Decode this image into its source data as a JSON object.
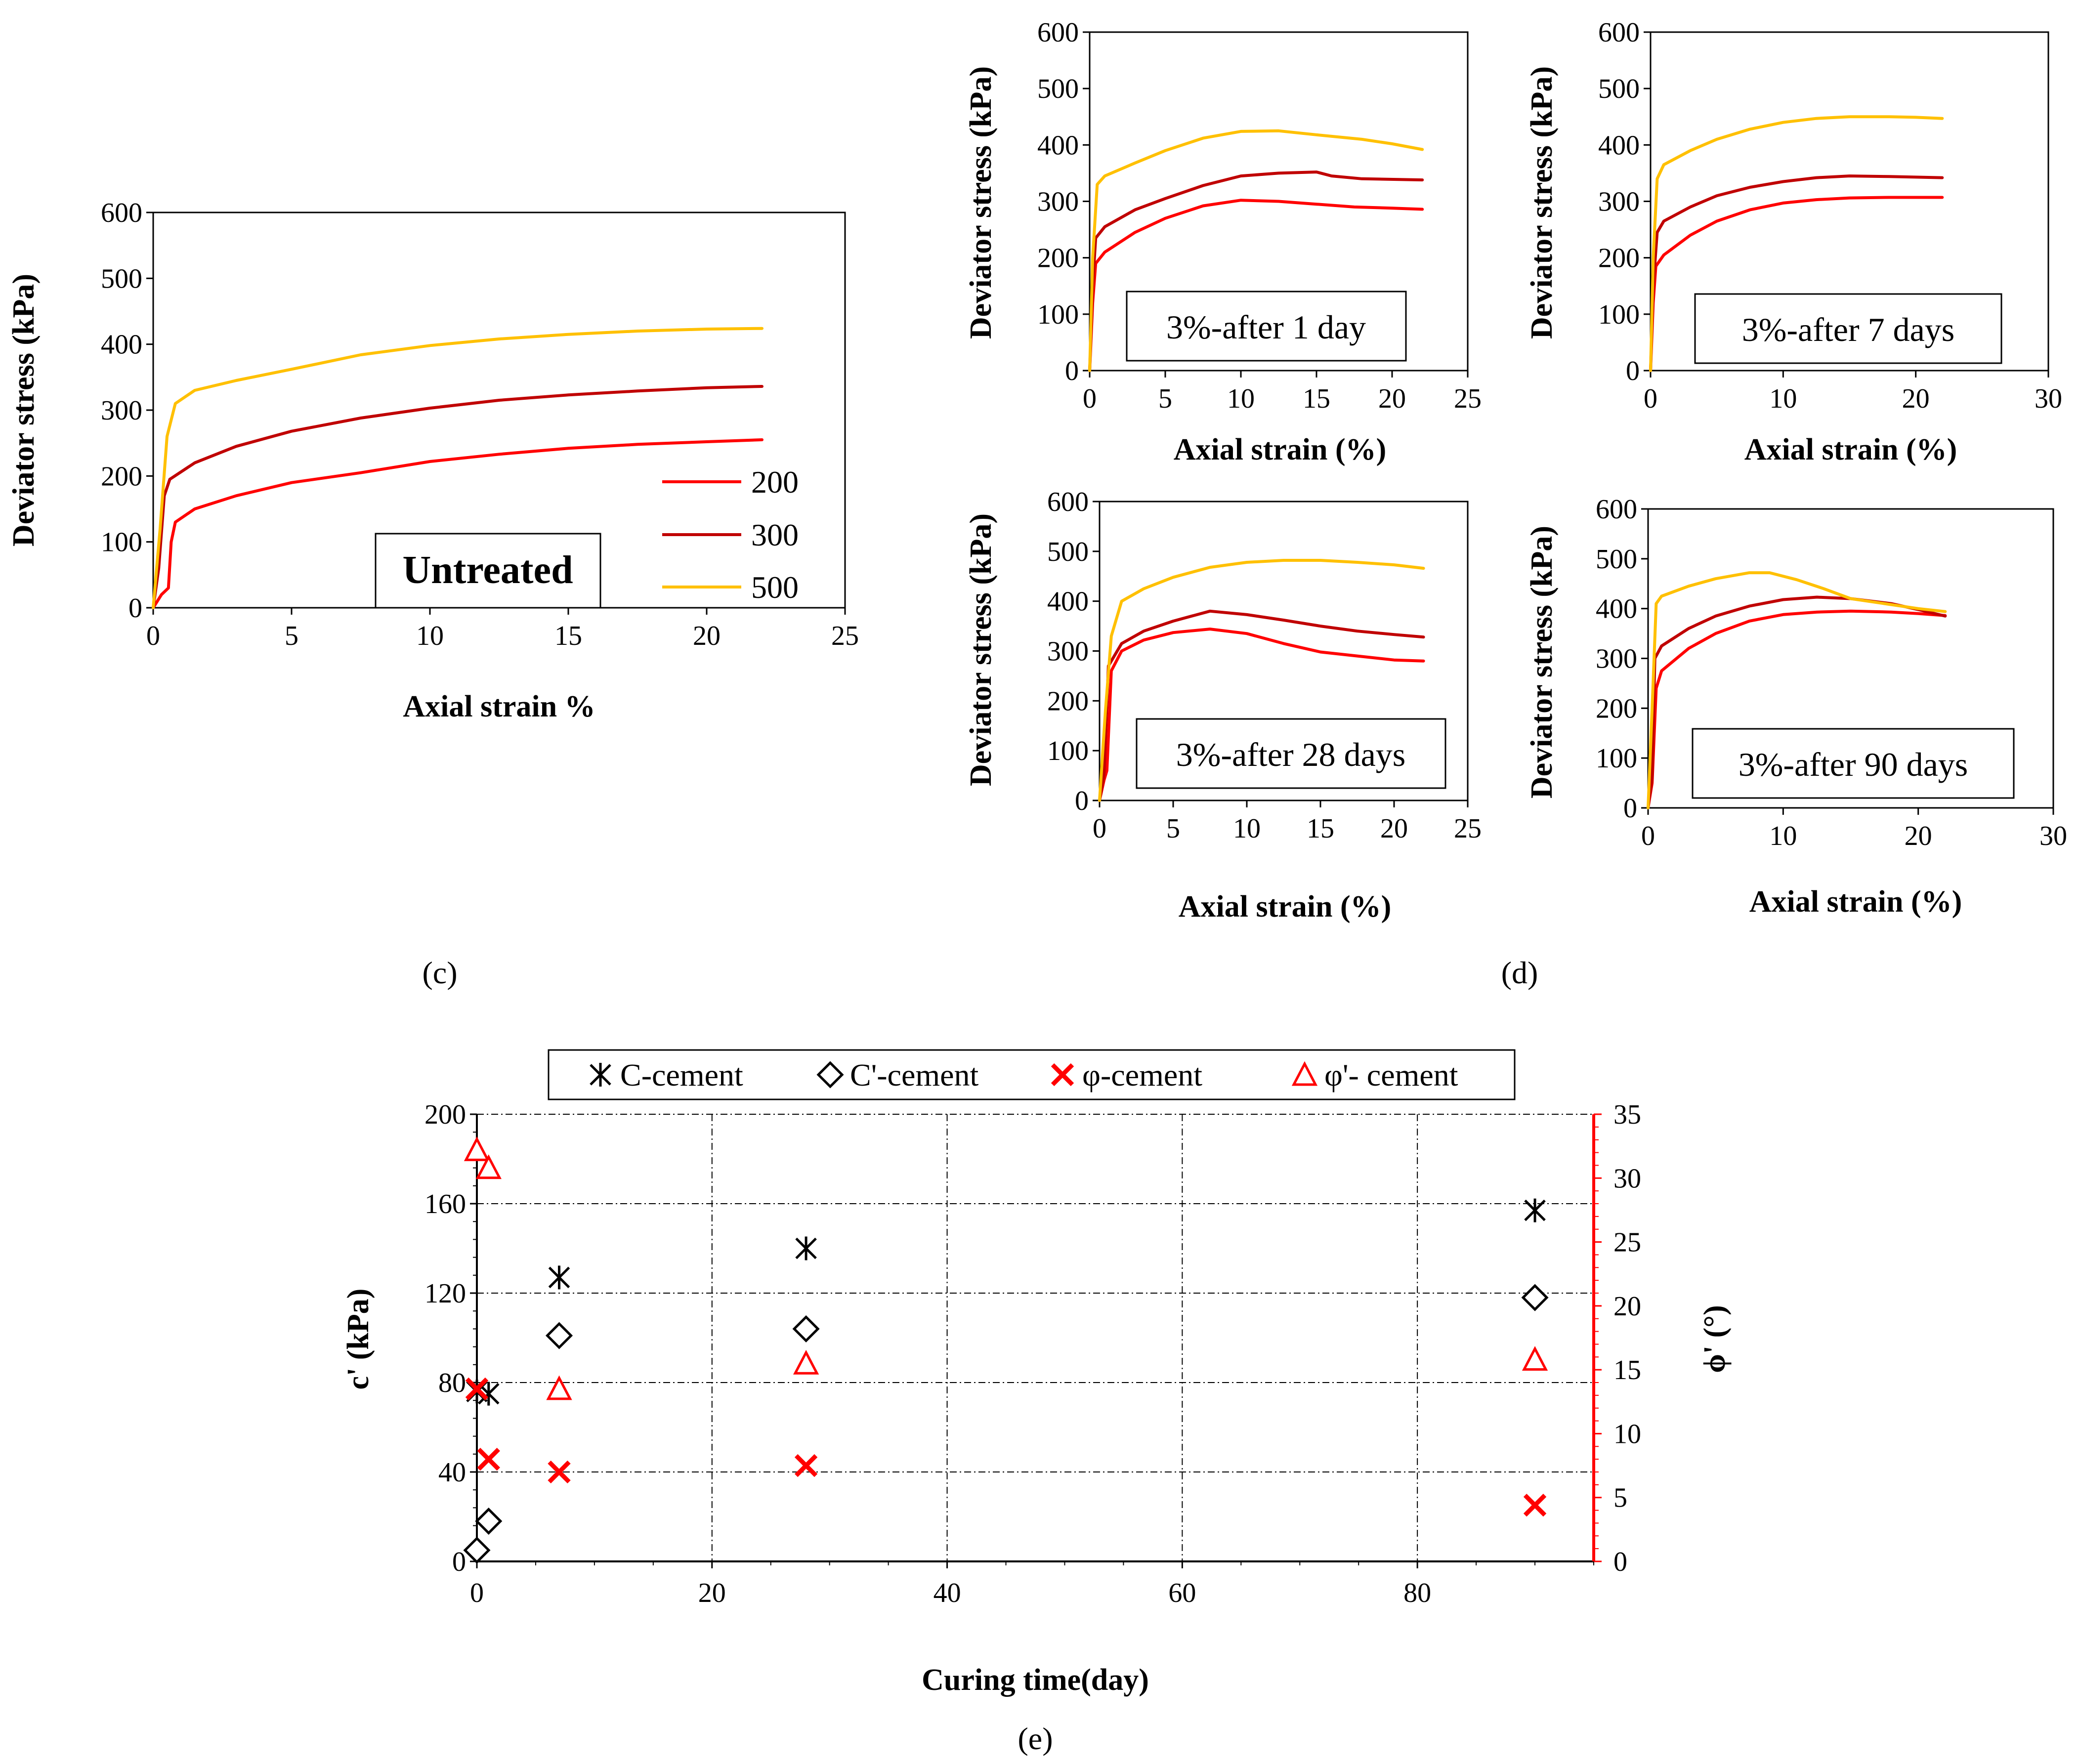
{
  "chart_data": [
    {
      "id": "c",
      "type": "line",
      "panel_label": "(c)",
      "box_label": "Untreated",
      "xlabel": "Axial strain %",
      "ylabel": "Deviator stress (kPa)",
      "xlim": [
        0,
        25
      ],
      "ylim": [
        0,
        600
      ],
      "xticks": [
        0,
        5,
        10,
        15,
        20,
        25
      ],
      "yticks": [
        0,
        100,
        200,
        300,
        400,
        500,
        600
      ],
      "legend": [
        "200",
        "300",
        "500"
      ],
      "series": [
        {
          "name": "200",
          "color": "#ff0000",
          "points": [
            [
              0,
              0
            ],
            [
              0.3,
              20
            ],
            [
              0.55,
              30
            ],
            [
              0.65,
              100
            ],
            [
              0.8,
              130
            ],
            [
              1.5,
              150
            ],
            [
              3,
              170
            ],
            [
              5,
              190
            ],
            [
              7.5,
              205
            ],
            [
              10,
              222
            ],
            [
              12.5,
              233
            ],
            [
              15,
              242
            ],
            [
              17.5,
              248
            ],
            [
              20,
              252
            ],
            [
              22,
              255
            ]
          ]
        },
        {
          "name": "300",
          "color": "#c00000",
          "points": [
            [
              0,
              0
            ],
            [
              0.2,
              60
            ],
            [
              0.4,
              170
            ],
            [
              0.6,
              195
            ],
            [
              1.5,
              220
            ],
            [
              3,
              245
            ],
            [
              5,
              268
            ],
            [
              7.5,
              288
            ],
            [
              10,
              303
            ],
            [
              12.5,
              315
            ],
            [
              15,
              323
            ],
            [
              17.5,
              329
            ],
            [
              20,
              334
            ],
            [
              22,
              336
            ]
          ]
        },
        {
          "name": "500",
          "color": "#ffc000",
          "points": [
            [
              0,
              0
            ],
            [
              0.25,
              120
            ],
            [
              0.5,
              260
            ],
            [
              0.8,
              310
            ],
            [
              1.5,
              330
            ],
            [
              3,
              345
            ],
            [
              5,
              362
            ],
            [
              7.5,
              384
            ],
            [
              10,
              398
            ],
            [
              12.5,
              408
            ],
            [
              15,
              415
            ],
            [
              17.5,
              420
            ],
            [
              20,
              423
            ],
            [
              22,
              424
            ]
          ]
        }
      ]
    },
    {
      "id": "d1",
      "type": "line",
      "box_label": "3%-after 1 day",
      "xlabel": "Axial strain (%)",
      "ylabel": "Deviator stress (kPa)",
      "xlim": [
        0,
        25
      ],
      "ylim": [
        0,
        600
      ],
      "xticks": [
        0,
        5,
        10,
        15,
        20,
        25
      ],
      "yticks": [
        0,
        100,
        200,
        300,
        400,
        500,
        600
      ],
      "series": [
        {
          "name": "200",
          "color": "#ff0000",
          "points": [
            [
              0,
              0
            ],
            [
              0.2,
              120
            ],
            [
              0.4,
              190
            ],
            [
              1,
              210
            ],
            [
              3,
              245
            ],
            [
              5,
              270
            ],
            [
              7.5,
              292
            ],
            [
              10,
              302
            ],
            [
              12.5,
              300
            ],
            [
              15,
              295
            ],
            [
              17.5,
              290
            ],
            [
              20,
              288
            ],
            [
              22,
              286
            ]
          ]
        },
        {
          "name": "300",
          "color": "#c00000",
          "points": [
            [
              0,
              0
            ],
            [
              0.2,
              150
            ],
            [
              0.4,
              235
            ],
            [
              1,
              255
            ],
            [
              3,
              285
            ],
            [
              5,
              305
            ],
            [
              7.5,
              328
            ],
            [
              10,
              345
            ],
            [
              12.5,
              350
            ],
            [
              15,
              352
            ],
            [
              16,
              345
            ],
            [
              18,
              340
            ],
            [
              22,
              338
            ]
          ]
        },
        {
          "name": "500",
          "color": "#ffc000",
          "points": [
            [
              0,
              0
            ],
            [
              0.2,
              200
            ],
            [
              0.5,
              330
            ],
            [
              1,
              345
            ],
            [
              3,
              368
            ],
            [
              5,
              390
            ],
            [
              7.5,
              412
            ],
            [
              10,
              424
            ],
            [
              12.5,
              425
            ],
            [
              15,
              418
            ],
            [
              18,
              410
            ],
            [
              20,
              402
            ],
            [
              22,
              392
            ]
          ]
        }
      ]
    },
    {
      "id": "d2",
      "type": "line",
      "box_label": "3%-after 7 days",
      "xlabel": "Axial strain (%)",
      "ylabel": "Deviator stress (kPa)",
      "xlim": [
        0,
        30
      ],
      "ylim": [
        0,
        600
      ],
      "xticks": [
        0,
        10,
        20,
        30
      ],
      "yticks": [
        0,
        100,
        200,
        300,
        400,
        500,
        600
      ],
      "series": [
        {
          "name": "200",
          "color": "#ff0000",
          "points": [
            [
              0,
              0
            ],
            [
              0.2,
              120
            ],
            [
              0.4,
              185
            ],
            [
              1,
              205
            ],
            [
              3,
              240
            ],
            [
              5,
              265
            ],
            [
              7.5,
              285
            ],
            [
              10,
              297
            ],
            [
              12.5,
              303
            ],
            [
              15,
              306
            ],
            [
              18,
              307
            ],
            [
              22,
              307
            ]
          ]
        },
        {
          "name": "300",
          "color": "#c00000",
          "points": [
            [
              0,
              0
            ],
            [
              0.2,
              150
            ],
            [
              0.5,
              245
            ],
            [
              1,
              265
            ],
            [
              3,
              290
            ],
            [
              5,
              310
            ],
            [
              7.5,
              325
            ],
            [
              10,
              335
            ],
            [
              12.5,
              342
            ],
            [
              15,
              345
            ],
            [
              18,
              344
            ],
            [
              22,
              342
            ]
          ]
        },
        {
          "name": "500",
          "color": "#ffc000",
          "points": [
            [
              0,
              0
            ],
            [
              0.2,
              200
            ],
            [
              0.5,
              340
            ],
            [
              1,
              365
            ],
            [
              3,
              390
            ],
            [
              5,
              410
            ],
            [
              7.5,
              428
            ],
            [
              10,
              440
            ],
            [
              12.5,
              447
            ],
            [
              15,
              450
            ],
            [
              18,
              450
            ],
            [
              20,
              449
            ],
            [
              22,
              447
            ]
          ]
        }
      ]
    },
    {
      "id": "d3",
      "type": "line",
      "box_label": "3%-after 28 days",
      "xlabel": "Axial strain (%)",
      "ylabel": "Deviator stress (kPa)",
      "xlim": [
        0,
        25
      ],
      "ylim": [
        0,
        600
      ],
      "xticks": [
        0,
        5,
        10,
        15,
        20,
        25
      ],
      "yticks": [
        0,
        100,
        200,
        300,
        400,
        500,
        600
      ],
      "series": [
        {
          "name": "200",
          "color": "#ff0000",
          "points": [
            [
              0,
              0
            ],
            [
              0.3,
              40
            ],
            [
              0.5,
              60
            ],
            [
              0.8,
              260
            ],
            [
              1.5,
              300
            ],
            [
              3,
              322
            ],
            [
              5,
              337
            ],
            [
              7.5,
              344
            ],
            [
              10,
              335
            ],
            [
              12.5,
              315
            ],
            [
              15,
              298
            ],
            [
              17.5,
              290
            ],
            [
              20,
              282
            ],
            [
              22,
              280
            ]
          ]
        },
        {
          "name": "300",
          "color": "#c00000",
          "points": [
            [
              0,
              0
            ],
            [
              0.3,
              50
            ],
            [
              0.6,
              270
            ],
            [
              1.5,
              315
            ],
            [
              3,
              340
            ],
            [
              5,
              360
            ],
            [
              7.5,
              380
            ],
            [
              10,
              373
            ],
            [
              12.5,
              362
            ],
            [
              15,
              350
            ],
            [
              17.5,
              340
            ],
            [
              20,
              333
            ],
            [
              22,
              328
            ]
          ]
        },
        {
          "name": "500",
          "color": "#ffc000",
          "points": [
            [
              0,
              0
            ],
            [
              0.4,
              180
            ],
            [
              0.8,
              330
            ],
            [
              1.5,
              400
            ],
            [
              3,
              425
            ],
            [
              5,
              448
            ],
            [
              7.5,
              468
            ],
            [
              10,
              478
            ],
            [
              12.5,
              482
            ],
            [
              15,
              482
            ],
            [
              17.5,
              478
            ],
            [
              20,
              473
            ],
            [
              22,
              466
            ]
          ]
        }
      ]
    },
    {
      "id": "d4",
      "type": "line",
      "box_label": "3%-after 90 days",
      "xlabel": "Axial strain (%)",
      "ylabel": "Deviator stress (kPa)",
      "xlim": [
        0,
        30
      ],
      "ylim": [
        0,
        600
      ],
      "xticks": [
        0,
        10,
        20,
        30
      ],
      "yticks": [
        0,
        100,
        200,
        300,
        400,
        500,
        600
      ],
      "series": [
        {
          "name": "200",
          "color": "#ff0000",
          "points": [
            [
              0,
              0
            ],
            [
              0.3,
              50
            ],
            [
              0.6,
              240
            ],
            [
              1,
              275
            ],
            [
              3,
              320
            ],
            [
              5,
              350
            ],
            [
              7.5,
              375
            ],
            [
              10,
              388
            ],
            [
              12.5,
              393
            ],
            [
              15,
              395
            ],
            [
              18,
              393
            ],
            [
              20,
              390
            ],
            [
              22,
              386
            ]
          ]
        },
        {
          "name": "300",
          "color": "#c00000",
          "points": [
            [
              0,
              0
            ],
            [
              0.3,
              60
            ],
            [
              0.5,
              300
            ],
            [
              1,
              325
            ],
            [
              3,
              360
            ],
            [
              5,
              385
            ],
            [
              7.5,
              405
            ],
            [
              10,
              418
            ],
            [
              12.5,
              423
            ],
            [
              15,
              420
            ],
            [
              18,
              410
            ],
            [
              20,
              398
            ],
            [
              22,
              385
            ]
          ]
        },
        {
          "name": "500",
          "color": "#ffc000",
          "points": [
            [
              0,
              0
            ],
            [
              0.3,
              200
            ],
            [
              0.6,
              410
            ],
            [
              1,
              425
            ],
            [
              3,
              445
            ],
            [
              5,
              460
            ],
            [
              7.5,
              472
            ],
            [
              9,
              472
            ],
            [
              11,
              458
            ],
            [
              13,
              440
            ],
            [
              15,
              420
            ],
            [
              17.5,
              410
            ],
            [
              20,
              400
            ],
            [
              22,
              394
            ]
          ]
        }
      ]
    },
    {
      "id": "e",
      "type": "scatter",
      "panel_label": "(e)",
      "xlabel": "Curing time(day)",
      "ylabel": "c' (kPa)",
      "ylabel2": "ϕ' (°)",
      "xlim": [
        0,
        95
      ],
      "ylim": [
        0,
        200
      ],
      "ylim2": [
        0,
        35
      ],
      "xticks": [
        0,
        20,
        40,
        60,
        80
      ],
      "yticks": [
        0,
        40,
        80,
        120,
        160,
        200
      ],
      "yticks2": [
        0,
        5,
        10,
        15,
        20,
        25,
        30,
        35
      ],
      "legend": [
        "C-cement",
        "C'-cement",
        "φ-cement",
        "φ'- cement"
      ],
      "series": [
        {
          "name": "C-cement",
          "axis": "left",
          "marker": "asterisk",
          "color": "#000000",
          "x": [
            0,
            1,
            7,
            28,
            90
          ],
          "y": [
            76,
            75,
            127,
            140,
            157
          ]
        },
        {
          "name": "C'-cement",
          "axis": "left",
          "marker": "diamond",
          "color": "#000000",
          "x": [
            0,
            1,
            7,
            28,
            90
          ],
          "y": [
            5,
            18,
            101,
            104,
            118
          ]
        },
        {
          "name": "φ-cement",
          "axis": "right",
          "marker": "x",
          "color": "#ff0000",
          "x": [
            0,
            1,
            7,
            28,
            90
          ],
          "y": [
            13.5,
            8.0,
            7.0,
            7.5,
            4.4
          ]
        },
        {
          "name": "φ'- cement",
          "axis": "right",
          "marker": "triangle",
          "color": "#ff0000",
          "x": [
            0,
            1,
            7,
            28,
            90
          ],
          "y": [
            32.2,
            30.8,
            13.5,
            15.5,
            15.8
          ]
        }
      ]
    }
  ],
  "labels": {
    "panel_d": "(d)"
  }
}
